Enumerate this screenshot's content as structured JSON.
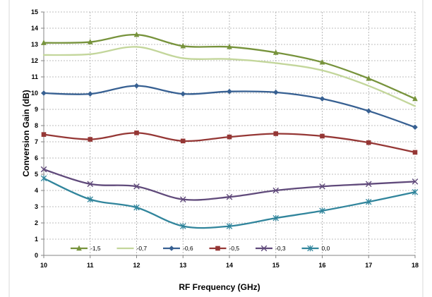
{
  "chart_data": {
    "type": "line",
    "title": "",
    "xlabel": "RF Frequency (GHz)",
    "ylabel": "Conversion Gain (dB)",
    "x": [
      10,
      11,
      12,
      13,
      14,
      15,
      16,
      17,
      18
    ],
    "xlim": [
      10,
      18
    ],
    "ylim": [
      0,
      15
    ],
    "x_ticks": [
      "10",
      "11",
      "12",
      "13",
      "14",
      "15",
      "16",
      "17",
      "18"
    ],
    "y_ticks": [
      "0",
      "1",
      "2",
      "3",
      "4",
      "5",
      "6",
      "7",
      "8",
      "9",
      "10",
      "11",
      "12",
      "13",
      "14",
      "15"
    ],
    "grid": true,
    "legend_position": "bottom-inside",
    "series": [
      {
        "name": "-1,5",
        "color": "#77933c",
        "marker": "triangle",
        "values": [
          13.1,
          13.15,
          13.6,
          12.9,
          12.85,
          12.5,
          11.9,
          10.9,
          9.65
        ]
      },
      {
        "name": "-0,7",
        "color": "#c3d69b",
        "marker": "none",
        "values": [
          12.35,
          12.4,
          12.85,
          12.15,
          12.1,
          11.85,
          11.4,
          10.45,
          9.2
        ]
      },
      {
        "name": "-0,6",
        "color": "#376092",
        "marker": "diamond",
        "values": [
          10.0,
          9.95,
          10.45,
          9.95,
          10.1,
          10.05,
          9.65,
          8.9,
          7.9
        ]
      },
      {
        "name": "-0,5",
        "color": "#953735",
        "marker": "square",
        "values": [
          7.45,
          7.15,
          7.55,
          7.05,
          7.3,
          7.5,
          7.35,
          6.95,
          6.35
        ]
      },
      {
        "name": "-0,3",
        "color": "#604a7b",
        "marker": "x",
        "values": [
          5.3,
          4.4,
          4.25,
          3.45,
          3.6,
          4.0,
          4.25,
          4.4,
          4.55
        ]
      },
      {
        "name": "0,0",
        "color": "#31859c",
        "marker": "star",
        "values": [
          4.75,
          3.45,
          2.95,
          1.8,
          1.8,
          2.3,
          2.75,
          3.3,
          3.9
        ]
      }
    ]
  }
}
